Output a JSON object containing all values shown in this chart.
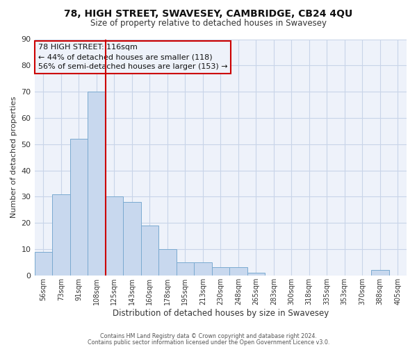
{
  "title": "78, HIGH STREET, SWAVESEY, CAMBRIDGE, CB24 4QU",
  "subtitle": "Size of property relative to detached houses in Swavesey",
  "xlabel": "Distribution of detached houses by size in Swavesey",
  "ylabel": "Number of detached properties",
  "bar_color": "#c8d8ee",
  "bar_edge_color": "#7aaad0",
  "grid_color": "#c8d4e8",
  "categories": [
    "56sqm",
    "73sqm",
    "91sqm",
    "108sqm",
    "125sqm",
    "143sqm",
    "160sqm",
    "178sqm",
    "195sqm",
    "213sqm",
    "230sqm",
    "248sqm",
    "265sqm",
    "283sqm",
    "300sqm",
    "318sqm",
    "335sqm",
    "353sqm",
    "370sqm",
    "388sqm",
    "405sqm"
  ],
  "values": [
    9,
    31,
    52,
    70,
    30,
    28,
    19,
    10,
    5,
    5,
    3,
    3,
    1,
    0,
    0,
    0,
    0,
    0,
    0,
    2,
    0
  ],
  "ylim": [
    0,
    90
  ],
  "yticks": [
    0,
    10,
    20,
    30,
    40,
    50,
    60,
    70,
    80,
    90
  ],
  "vline_x": 3.5,
  "vline_color": "#cc0000",
  "annotation_line1": "78 HIGH STREET: 116sqm",
  "annotation_line2": "← 44% of detached houses are smaller (118)",
  "annotation_line3": "56% of semi-detached houses are larger (153) →",
  "annotation_box_color": "#cc0000",
  "footer1": "Contains HM Land Registry data © Crown copyright and database right 2024.",
  "footer2": "Contains public sector information licensed under the Open Government Licence v3.0.",
  "bg_color": "#ffffff",
  "plot_bg_color": "#eef2fa"
}
